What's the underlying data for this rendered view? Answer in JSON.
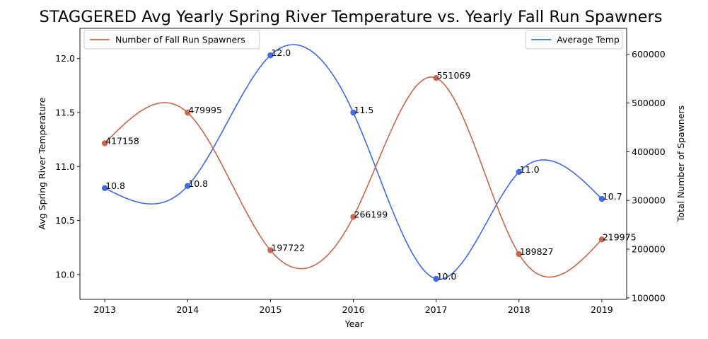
{
  "chart_data": {
    "type": "line",
    "title": "STAGGERED Avg Yearly Spring River Temperature vs. Yearly Fall Run Spawners",
    "xlabel": "Year",
    "ylabel_left": "Avg Spring River Temperature",
    "ylabel_right": "Total Number of Spawners",
    "x": [
      2013,
      2014,
      2015,
      2016,
      2017,
      2018,
      2019
    ],
    "xlim": [
      2012.7,
      2019.3
    ],
    "ylim_left": [
      9.77,
      12.28
    ],
    "ylim_right": [
      97000,
      653000
    ],
    "yticks_left": [
      "10.0",
      "10.5",
      "11.0",
      "11.5",
      "12.0"
    ],
    "yticks_right": [
      "100000",
      "200000",
      "300000",
      "400000",
      "500000",
      "600000"
    ],
    "xticks": [
      "2013",
      "2014",
      "2015",
      "2016",
      "2017",
      "2018",
      "2019"
    ],
    "grid": false,
    "series": [
      {
        "name": "Average Temp",
        "axis": "left",
        "color": "#4169E1",
        "smooth": true,
        "values": [
          10.8,
          10.82,
          12.03,
          11.5,
          9.96,
          10.95,
          10.7
        ],
        "labels": [
          "10.8",
          "10.8",
          "12.0",
          "11.5",
          "10.0",
          "11.0",
          "10.7"
        ],
        "legend_position": "upper right"
      },
      {
        "name": "Number of Fall Run Spawners",
        "axis": "right",
        "color": "#C8664F",
        "smooth": true,
        "values": [
          417158,
          479995,
          197722,
          266199,
          551069,
          189827,
          219975
        ],
        "labels": [
          "417158",
          "479995",
          "197722",
          "266199",
          "551069",
          "189827",
          "219975"
        ],
        "legend_position": "upper left"
      }
    ]
  }
}
